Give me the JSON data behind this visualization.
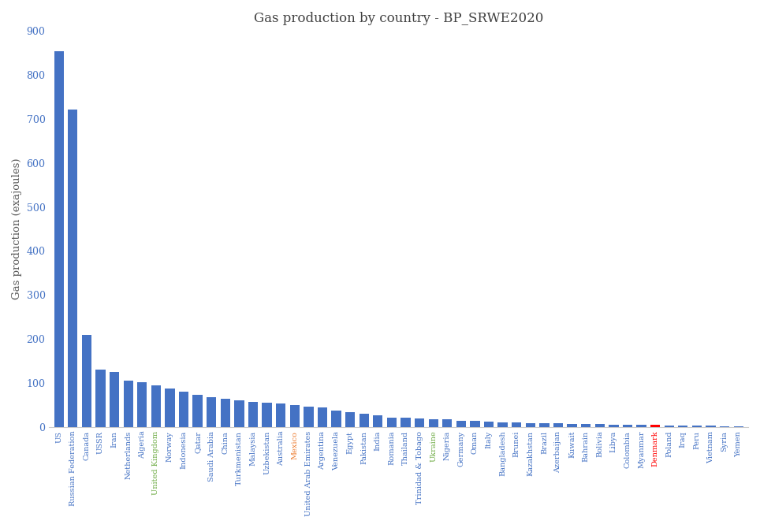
{
  "title": "Gas production by country - BP_SRWE2020",
  "ylabel": "Gas production (exajoules)",
  "ylim": [
    0,
    900
  ],
  "yticks": [
    0,
    100,
    200,
    300,
    400,
    500,
    600,
    700,
    800,
    900
  ],
  "bar_color_default": "#4472C4",
  "bar_color_highlight": "#FF0000",
  "highlight_country": "Denmark",
  "countries": [
    "US",
    "Russian Federation",
    "Canada",
    "USSR",
    "Iran",
    "Netherlands",
    "Algeria",
    "United Kingdom",
    "Norway",
    "Indonesia",
    "Qatar",
    "Saudi Arabia",
    "China",
    "Turkmenistan",
    "Malaysia",
    "Uzbekistan",
    "Australia",
    "Mexico",
    "United Arab Emirates",
    "Argentina",
    "Venezuela",
    "Egypt",
    "Pakistan",
    "India",
    "Romania",
    "Thailand",
    "Trinidad & Tobago",
    "Ukraine",
    "Nigeria",
    "Germany",
    "Oman",
    "Italy",
    "Bangladesh",
    "Brunei",
    "Kazakhstan",
    "Brazil",
    "Azerbaijan",
    "Kuwait",
    "Bahrain",
    "Bolivia",
    "Libya",
    "Colombia",
    "Myanmar",
    "Denmark",
    "Poland",
    "Iraq",
    "Peru",
    "Vietnam",
    "Syria",
    "Yemen"
  ],
  "values": [
    853,
    722,
    210,
    130,
    125,
    105,
    101,
    95,
    88,
    80,
    73,
    68,
    65,
    60,
    57,
    55,
    53,
    50,
    47,
    44,
    38,
    33,
    30,
    27,
    22,
    21,
    20,
    18,
    17,
    15,
    14,
    12,
    11,
    10,
    9,
    8.5,
    8,
    7.5,
    7,
    6.5,
    6,
    5.5,
    5,
    4.5,
    4,
    3.5,
    3,
    2.5,
    2,
    1.5
  ],
  "tick_colors": [
    "#4472C4",
    "#4472C4",
    "#4472C4",
    "#4472C4",
    "#4472C4",
    "#4472C4",
    "#4472C4",
    "#70AD47",
    "#4472C4",
    "#4472C4",
    "#4472C4",
    "#4472C4",
    "#4472C4",
    "#4472C4",
    "#4472C4",
    "#4472C4",
    "#4472C4",
    "#ED7D31",
    "#4472C4",
    "#4472C4",
    "#4472C4",
    "#4472C4",
    "#4472C4",
    "#4472C4",
    "#4472C4",
    "#4472C4",
    "#4472C4",
    "#70AD47",
    "#4472C4",
    "#4472C4",
    "#4472C4",
    "#4472C4",
    "#4472C4",
    "#4472C4",
    "#4472C4",
    "#4472C4",
    "#4472C4",
    "#4472C4",
    "#4472C4",
    "#4472C4",
    "#4472C4",
    "#4472C4",
    "#4472C4",
    "#FF0000",
    "#4472C4",
    "#4472C4",
    "#4472C4",
    "#4472C4",
    "#4472C4",
    "#4472C4"
  ]
}
